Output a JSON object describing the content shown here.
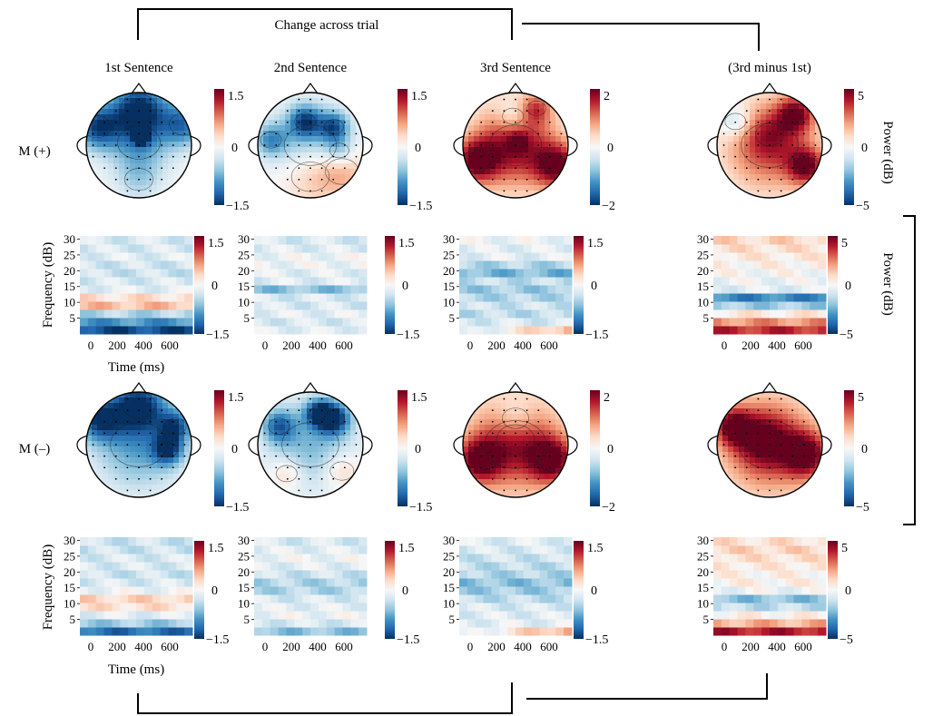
{
  "figure": {
    "top_bracket_label": "Change across trial",
    "significance_marker": "*",
    "column_headers": [
      "1st Sentence",
      "2nd Sentence",
      "3rd Sentence",
      "(3rd minus 1st)"
    ],
    "row_labels": [
      "M (+)",
      "M (–)"
    ],
    "power_label": "Power (dB)",
    "frequency_label": "Frequency (dB)",
    "time_label": "Time (ms)",
    "frequency_ticks": [
      "5",
      "10",
      "15",
      "20",
      "25",
      "30"
    ],
    "time_ticks": [
      "0",
      "200",
      "400",
      "600"
    ]
  },
  "colorbar_limits": [
    [
      "1.5",
      "−1.5"
    ],
    [
      "1.5",
      "−1.5"
    ],
    [
      "2",
      "−2"
    ],
    [
      "5",
      "−5"
    ],
    [
      "1.5",
      "−1.5"
    ],
    [
      "1.5",
      "−1.5"
    ],
    [
      "1.5",
      "−1.5"
    ],
    [
      "5",
      "−5"
    ],
    [
      "1.5",
      "−1.5"
    ],
    [
      "1.5",
      "−1.5"
    ],
    [
      "2",
      "−2"
    ],
    [
      "5",
      "−5"
    ],
    [
      "1.5",
      "−1.5"
    ],
    [
      "1.5",
      "−1.5"
    ],
    [
      "1.5",
      "−1.5"
    ],
    [
      "5",
      "−5"
    ]
  ],
  "colorbar_mid": "0",
  "colormap": [
    "#053061",
    "#2166ac",
    "#4393c3",
    "#92c5de",
    "#d1e5f0",
    "#f7f7f7",
    "#fddbc7",
    "#f4a582",
    "#d6604d",
    "#b2182b",
    "#67001f"
  ],
  "topomaps": [
    {
      "condition": "M (+)",
      "column": "1st Sentence",
      "spots": [
        [
          0,
          0.05,
          0.12,
          -0.5,
          0.45
        ],
        [
          0,
          0.7,
          0.28,
          -0.95,
          0.38
        ],
        [
          -0.8,
          0.35,
          0.18,
          -0.85,
          0.3
        ],
        [
          0.85,
          0.4,
          0.22,
          -0.7,
          0.3
        ],
        [
          0,
          -0.65,
          0.4,
          -0.25,
          0.3
        ],
        [
          0.05,
          0.15,
          0.12,
          -0.95,
          0.1
        ]
      ]
    },
    {
      "condition": "M (+)",
      "column": "2nd Sentence",
      "spots": [
        [
          0,
          -0.6,
          0.18,
          0.35,
          0.4
        ],
        [
          0.6,
          -0.5,
          0.25,
          0.4,
          0.35
        ],
        [
          -0.1,
          0.45,
          0.05,
          -0.75,
          0.22
        ],
        [
          0.45,
          0.35,
          0.05,
          -0.7,
          0.2
        ],
        [
          -0.75,
          0.1,
          0.1,
          -0.55,
          0.22
        ],
        [
          0.55,
          -0.1,
          0.05,
          -0.35,
          0.2
        ],
        [
          0,
          0,
          0.1,
          -0.4,
          0.55
        ]
      ]
    },
    {
      "condition": "M (+)",
      "column": "3rd Sentence",
      "spots": [
        [
          0,
          0,
          0.55,
          0.9,
          0.55
        ],
        [
          -0.75,
          -0.3,
          0.55,
          0.9,
          0.3
        ],
        [
          0.8,
          -0.4,
          0.35,
          0.9,
          0.3
        ],
        [
          -0.05,
          0.55,
          0.05,
          -0.35,
          0.22
        ],
        [
          0.05,
          0.05,
          0.1,
          0.35,
          0.12
        ],
        [
          0.4,
          0.7,
          0.1,
          0.5,
          0.2
        ]
      ]
    },
    {
      "condition": "M (+)",
      "column": "(3rd minus 1st)",
      "spots": [
        [
          0,
          0,
          0.55,
          0.7,
          0.6
        ],
        [
          0,
          0.2,
          0.3,
          0.25,
          0.3
        ],
        [
          -0.65,
          0.45,
          0.12,
          -0.4,
          0.22
        ],
        [
          0.7,
          -0.4,
          0.35,
          0.85,
          0.25
        ],
        [
          0.5,
          0.6,
          0.3,
          0.8,
          0.25
        ]
      ]
    },
    {
      "condition": "M (–)",
      "column": "1st Sentence",
      "spots": [
        [
          0,
          0,
          0.6,
          -0.55,
          0.6
        ],
        [
          0,
          0.75,
          0.35,
          -0.9,
          0.35
        ],
        [
          -0.75,
          0.5,
          0.2,
          -0.85,
          0.3
        ],
        [
          0.55,
          -0.1,
          0.05,
          -0.75,
          0.2
        ],
        [
          0.7,
          0.35,
          0.1,
          -0.7,
          0.22
        ]
      ]
    },
    {
      "condition": "M (–)",
      "column": "2nd Sentence",
      "spots": [
        [
          0,
          0,
          0.15,
          -0.45,
          0.6
        ],
        [
          0.45,
          0.5,
          0.3,
          -0.9,
          0.22
        ],
        [
          -0.6,
          0.35,
          0.1,
          -0.65,
          0.22
        ],
        [
          -0.45,
          -0.55,
          0.2,
          0.3,
          0.22
        ],
        [
          0.6,
          -0.5,
          0.25,
          0.3,
          0.25
        ],
        [
          0.15,
          0.6,
          0.25,
          -0.8,
          0.18
        ]
      ]
    },
    {
      "condition": "M (–)",
      "column": "3rd Sentence",
      "spots": [
        [
          0,
          0,
          0.5,
          0.75,
          0.65
        ],
        [
          0,
          0.1,
          0.2,
          0.15,
          0.4
        ],
        [
          0,
          0.5,
          0.1,
          -0.35,
          0.28
        ],
        [
          -0.7,
          -0.3,
          0.4,
          0.85,
          0.3
        ],
        [
          0.7,
          -0.3,
          0.4,
          0.85,
          0.3
        ]
      ]
    },
    {
      "condition": "M (–)",
      "column": "(3rd minus 1st)",
      "spots": [
        [
          0,
          0,
          0.5,
          0.75,
          0.65
        ],
        [
          -0.15,
          0.1,
          0.3,
          0.45,
          0.35
        ],
        [
          0.7,
          -0.2,
          0.4,
          0.85,
          0.3
        ],
        [
          -0.7,
          0.35,
          0.35,
          0.8,
          0.25
        ]
      ]
    }
  ],
  "spectrograms": [
    {
      "condition": "M (+)",
      "column": "1st Sentence",
      "band_values": [
        -0.9,
        -0.6,
        -0.3,
        0.3,
        0.15,
        -0.1,
        -0.15,
        -0.2,
        -0.18,
        -0.12,
        -0.15,
        -0.15
      ]
    },
    {
      "condition": "M (+)",
      "column": "2nd Sentence",
      "band_values": [
        -0.1,
        -0.15,
        -0.1,
        -0.15,
        -0.15,
        -0.4,
        -0.12,
        -0.1,
        -0.05,
        -0.05,
        -0.12,
        -0.15
      ]
    },
    {
      "condition": "M (+)",
      "column": "3rd Sentence",
      "band_values": [
        -0.2,
        -0.15,
        -0.25,
        -0.2,
        -0.3,
        -0.35,
        -0.25,
        -0.45,
        -0.3,
        -0.1,
        -0.1,
        -0.05
      ]
    },
    {
      "condition": "M (+)",
      "column": "(3rd minus 1st)",
      "band_values": [
        0.75,
        0.45,
        0.1,
        -0.35,
        -0.65,
        -0.1,
        -0.05,
        0,
        0.05,
        0.1,
        0.15,
        0.2
      ]
    },
    {
      "condition": "M (–)",
      "column": "1st Sentence",
      "band_values": [
        -0.75,
        -0.35,
        -0.1,
        0.15,
        0.2,
        -0.05,
        -0.15,
        -0.2,
        -0.15,
        -0.15,
        -0.2,
        -0.2
      ]
    },
    {
      "condition": "M (–)",
      "column": "2nd Sentence",
      "band_values": [
        -0.4,
        -0.15,
        -0.05,
        -0.1,
        -0.15,
        -0.3,
        -0.3,
        -0.2,
        -0.1,
        -0.05,
        -0.1,
        -0.15
      ]
    },
    {
      "condition": "M (–)",
      "column": "3rd Sentence",
      "band_values": [
        -0.15,
        -0.1,
        -0.12,
        -0.15,
        -0.25,
        -0.35,
        -0.4,
        -0.3,
        -0.25,
        -0.2,
        -0.15,
        -0.12
      ]
    },
    {
      "condition": "M (–)",
      "column": "(3rd minus 1st)",
      "band_values": [
        0.8,
        0.35,
        0.05,
        -0.25,
        -0.4,
        -0.05,
        0.05,
        0.05,
        0.1,
        0.15,
        0.2,
        0.15
      ]
    }
  ]
}
